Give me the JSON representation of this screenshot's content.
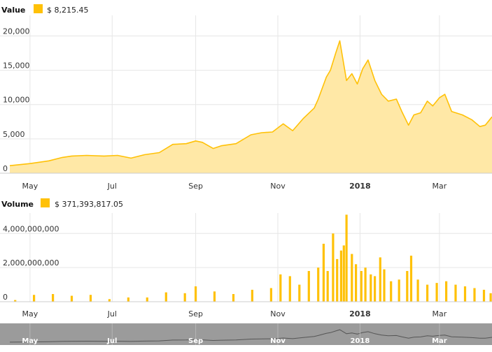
{
  "colors": {
    "series": "#FFC107",
    "fill": "#FFE8A6",
    "grid": "#e6e6e6",
    "navigator_bg": "#9b9b9b",
    "navigator_line": "#555555"
  },
  "x_ticks": [
    {
      "date": "2017-05-01",
      "label": "May",
      "bold": false
    },
    {
      "date": "2017-07-01",
      "label": "Jul",
      "bold": false
    },
    {
      "date": "2017-09-01",
      "label": "Sep",
      "bold": false
    },
    {
      "date": "2017-11-01",
      "label": "Nov",
      "bold": false
    },
    {
      "date": "2018-01-01",
      "label": "2018",
      "bold": true
    },
    {
      "date": "2018-03-01",
      "label": "Mar",
      "bold": false
    }
  ],
  "chart_data": [
    {
      "type": "area",
      "legend": {
        "label": "Value",
        "value": "$ 8,215.45"
      },
      "xlim": [
        "2017-04-16",
        "2018-04-09"
      ],
      "ylim": [
        0,
        23000
      ],
      "yticks": [
        0,
        5000,
        10000,
        15000,
        20000
      ],
      "ytick_labels": [
        "0",
        "5,000",
        "10,000",
        "15,000",
        "20,000"
      ],
      "grid": true,
      "x": [
        "2017-04-16",
        "2017-05-01",
        "2017-05-15",
        "2017-05-25",
        "2017-06-01",
        "2017-06-12",
        "2017-06-25",
        "2017-07-05",
        "2017-07-15",
        "2017-07-25",
        "2017-08-05",
        "2017-08-15",
        "2017-08-25",
        "2017-09-01",
        "2017-09-06",
        "2017-09-14",
        "2017-09-20",
        "2017-10-01",
        "2017-10-12",
        "2017-10-20",
        "2017-10-28",
        "2017-11-05",
        "2017-11-12",
        "2017-11-20",
        "2017-11-28",
        "2017-12-01",
        "2017-12-07",
        "2017-12-10",
        "2017-12-14",
        "2017-12-17",
        "2017-12-22",
        "2017-12-26",
        "2017-12-30",
        "2018-01-03",
        "2018-01-07",
        "2018-01-12",
        "2018-01-17",
        "2018-01-22",
        "2018-01-28",
        "2018-02-01",
        "2018-02-06",
        "2018-02-10",
        "2018-02-15",
        "2018-02-20",
        "2018-02-24",
        "2018-03-01",
        "2018-03-05",
        "2018-03-10",
        "2018-03-18",
        "2018-03-25",
        "2018-03-31",
        "2018-04-04",
        "2018-04-09"
      ],
      "y": [
        1100,
        1400,
        1800,
        2300,
        2500,
        2600,
        2500,
        2600,
        2200,
        2700,
        3000,
        4200,
        4300,
        4700,
        4500,
        3600,
        4000,
        4300,
        5600,
        5900,
        6000,
        7200,
        6200,
        8000,
        9500,
        10800,
        14000,
        15000,
        17500,
        19300,
        13500,
        14500,
        13000,
        15200,
        16500,
        13500,
        11500,
        10500,
        10800,
        9000,
        7000,
        8500,
        8800,
        10500,
        9800,
        11000,
        11500,
        9000,
        8500,
        7800,
        6800,
        7000,
        8215
      ]
    },
    {
      "type": "bar",
      "legend": {
        "label": "Volume",
        "value": "$ 371,393,817.05"
      },
      "ylim": [
        0,
        5200000000
      ],
      "yticks": [
        0,
        2000000000,
        4000000000
      ],
      "ytick_labels": [
        "0",
        "2,000,000,000",
        "4,000,000,000"
      ],
      "grid": true,
      "x": [
        "2017-04-20",
        "2017-05-04",
        "2017-05-18",
        "2017-06-01",
        "2017-06-15",
        "2017-06-29",
        "2017-07-13",
        "2017-07-27",
        "2017-08-10",
        "2017-08-24",
        "2017-09-01",
        "2017-09-15",
        "2017-09-29",
        "2017-10-13",
        "2017-10-27",
        "2017-11-03",
        "2017-11-10",
        "2017-11-17",
        "2017-11-24",
        "2017-12-01",
        "2017-12-05",
        "2017-12-08",
        "2017-12-12",
        "2017-12-15",
        "2017-12-18",
        "2017-12-20",
        "2017-12-22",
        "2017-12-26",
        "2017-12-29",
        "2018-01-02",
        "2018-01-05",
        "2018-01-09",
        "2018-01-12",
        "2018-01-16",
        "2018-01-19",
        "2018-01-24",
        "2018-01-30",
        "2018-02-05",
        "2018-02-08",
        "2018-02-13",
        "2018-02-20",
        "2018-02-27",
        "2018-03-06",
        "2018-03-13",
        "2018-03-20",
        "2018-03-27",
        "2018-04-03",
        "2018-04-08"
      ],
      "values": [
        100000000,
        400000000,
        450000000,
        350000000,
        400000000,
        150000000,
        250000000,
        250000000,
        550000000,
        500000000,
        900000000,
        600000000,
        450000000,
        700000000,
        800000000,
        1600000000,
        1500000000,
        1000000000,
        1800000000,
        2000000000,
        3400000000,
        1800000000,
        4000000000,
        2500000000,
        3000000000,
        3300000000,
        5100000000,
        2800000000,
        2200000000,
        1800000000,
        2000000000,
        1600000000,
        1500000000,
        2600000000,
        1900000000,
        1200000000,
        1300000000,
        1800000000,
        2700000000,
        1300000000,
        1000000000,
        1100000000,
        1200000000,
        1000000000,
        900000000,
        800000000,
        700000000,
        500000000
      ]
    }
  ],
  "navigator": {
    "labels": [
      "May",
      "Jul",
      "Sep",
      "Nov",
      "2018",
      "Mar"
    ]
  }
}
